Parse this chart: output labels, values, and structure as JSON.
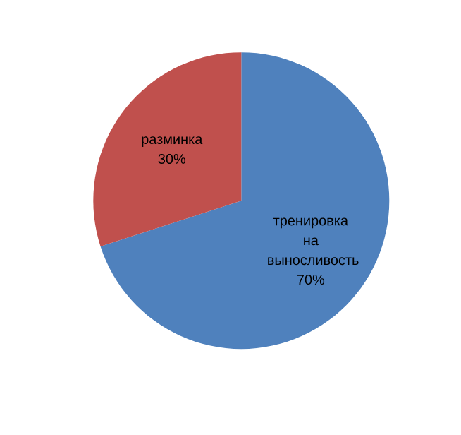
{
  "chart_data": {
    "type": "pie",
    "categories": [
      "тренировка на выносливость",
      "разминка"
    ],
    "values": [
      70,
      30
    ],
    "colors": [
      "#4f81bd",
      "#c0504d"
    ],
    "value_labels": [
      "70%",
      "30%"
    ]
  }
}
